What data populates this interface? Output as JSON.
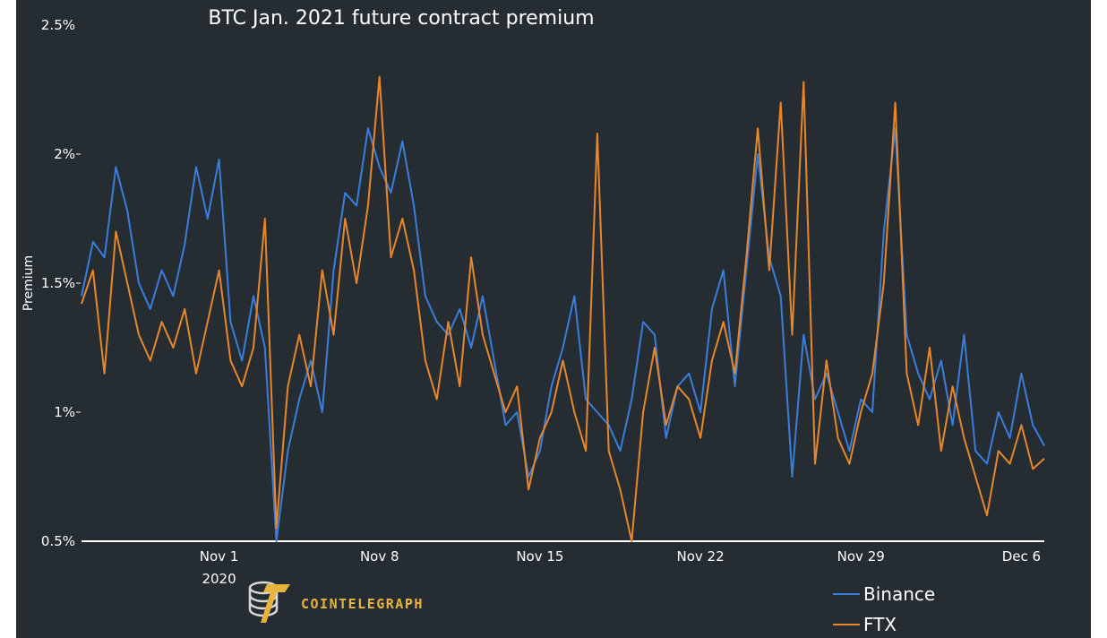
{
  "chart_data": {
    "type": "line",
    "title": "BTC Jan. 2021 future contract premium",
    "ylabel": "Premium",
    "xlabel": "",
    "xlim": [
      "2020-10-26",
      "2020-12-07"
    ],
    "ylim": [
      0.5,
      2.5
    ],
    "y_ticks": [
      0.5,
      1,
      1.5,
      2,
      2.5
    ],
    "y_tick_labels": [
      "0.5%",
      "1%",
      "1.5%",
      "2%",
      "2.5%"
    ],
    "x_ticks": [
      "2020-11-01",
      "2020-11-08",
      "2020-11-15",
      "2020-11-22",
      "2020-11-29",
      "2020-12-06"
    ],
    "x_tick_labels": [
      "Nov 1",
      "Nov 8",
      "Nov 15",
      "Nov 22",
      "Nov 29",
      "Dec 6"
    ],
    "x_tick_sublabel": "2020",
    "legend_position": "bottom-right",
    "series": [
      {
        "name": "Binance",
        "color": "#3a7ddb",
        "points": [
          [
            "2020-10-26 00:00",
            1.45
          ],
          [
            "2020-10-26 12:00",
            1.66
          ],
          [
            "2020-10-27 00:00",
            1.6
          ],
          [
            "2020-10-27 12:00",
            1.95
          ],
          [
            "2020-10-28 00:00",
            1.78
          ],
          [
            "2020-10-28 12:00",
            1.5
          ],
          [
            "2020-10-29 00:00",
            1.4
          ],
          [
            "2020-10-29 12:00",
            1.55
          ],
          [
            "2020-10-30 00:00",
            1.45
          ],
          [
            "2020-10-30 12:00",
            1.65
          ],
          [
            "2020-10-31 00:00",
            1.95
          ],
          [
            "2020-10-31 12:00",
            1.75
          ],
          [
            "2020-11-01 00:00",
            1.98
          ],
          [
            "2020-11-01 12:00",
            1.35
          ],
          [
            "2020-11-02 00:00",
            1.2
          ],
          [
            "2020-11-02 12:00",
            1.45
          ],
          [
            "2020-11-03 00:00",
            1.25
          ],
          [
            "2020-11-03 12:00",
            0.5
          ],
          [
            "2020-11-04 00:00",
            0.85
          ],
          [
            "2020-11-04 12:00",
            1.05
          ],
          [
            "2020-11-05 00:00",
            1.2
          ],
          [
            "2020-11-05 12:00",
            1.0
          ],
          [
            "2020-11-06 00:00",
            1.55
          ],
          [
            "2020-11-06 12:00",
            1.85
          ],
          [
            "2020-11-07 00:00",
            1.8
          ],
          [
            "2020-11-07 12:00",
            2.1
          ],
          [
            "2020-11-08 00:00",
            1.95
          ],
          [
            "2020-11-08 12:00",
            1.85
          ],
          [
            "2020-11-09 00:00",
            2.05
          ],
          [
            "2020-11-09 12:00",
            1.8
          ],
          [
            "2020-11-10 00:00",
            1.45
          ],
          [
            "2020-11-10 12:00",
            1.35
          ],
          [
            "2020-11-11 00:00",
            1.3
          ],
          [
            "2020-11-11 12:00",
            1.4
          ],
          [
            "2020-11-12 00:00",
            1.25
          ],
          [
            "2020-11-12 12:00",
            1.45
          ],
          [
            "2020-11-13 00:00",
            1.2
          ],
          [
            "2020-11-13 12:00",
            0.95
          ],
          [
            "2020-11-14 00:00",
            1.0
          ],
          [
            "2020-11-14 12:00",
            0.75
          ],
          [
            "2020-11-15 00:00",
            0.85
          ],
          [
            "2020-11-15 12:00",
            1.1
          ],
          [
            "2020-11-16 00:00",
            1.25
          ],
          [
            "2020-11-16 12:00",
            1.45
          ],
          [
            "2020-11-17 00:00",
            1.05
          ],
          [
            "2020-11-17 12:00",
            1.0
          ],
          [
            "2020-11-18 00:00",
            0.95
          ],
          [
            "2020-11-18 12:00",
            0.85
          ],
          [
            "2020-11-19 00:00",
            1.05
          ],
          [
            "2020-11-19 12:00",
            1.35
          ],
          [
            "2020-11-20 00:00",
            1.3
          ],
          [
            "2020-11-20 12:00",
            0.9
          ],
          [
            "2020-11-21 00:00",
            1.1
          ],
          [
            "2020-11-21 12:00",
            1.15
          ],
          [
            "2020-11-22 00:00",
            1.0
          ],
          [
            "2020-11-22 12:00",
            1.4
          ],
          [
            "2020-11-23 00:00",
            1.55
          ],
          [
            "2020-11-23 12:00",
            1.1
          ],
          [
            "2020-11-24 00:00",
            1.55
          ],
          [
            "2020-11-24 12:00",
            2.0
          ],
          [
            "2020-11-25 00:00",
            1.6
          ],
          [
            "2020-11-25 12:00",
            1.45
          ],
          [
            "2020-11-26 00:00",
            0.75
          ],
          [
            "2020-11-26 12:00",
            1.3
          ],
          [
            "2020-11-27 00:00",
            1.05
          ],
          [
            "2020-11-27 12:00",
            1.15
          ],
          [
            "2020-11-28 00:00",
            1.0
          ],
          [
            "2020-11-28 12:00",
            0.85
          ],
          [
            "2020-11-29 00:00",
            1.05
          ],
          [
            "2020-11-29 12:00",
            1.0
          ],
          [
            "2020-11-30 00:00",
            1.7
          ],
          [
            "2020-11-30 12:00",
            2.1
          ],
          [
            "2020-12-01 00:00",
            1.3
          ],
          [
            "2020-12-01 12:00",
            1.15
          ],
          [
            "2020-12-02 00:00",
            1.05
          ],
          [
            "2020-12-02 12:00",
            1.2
          ],
          [
            "2020-12-03 00:00",
            0.95
          ],
          [
            "2020-12-03 12:00",
            1.3
          ],
          [
            "2020-12-04 00:00",
            0.85
          ],
          [
            "2020-12-04 12:00",
            0.8
          ],
          [
            "2020-12-05 00:00",
            1.0
          ],
          [
            "2020-12-05 12:00",
            0.9
          ],
          [
            "2020-12-06 00:00",
            1.15
          ],
          [
            "2020-12-06 12:00",
            0.95
          ],
          [
            "2020-12-07 00:00",
            0.87
          ]
        ]
      },
      {
        "name": "FTX",
        "color": "#e8872a",
        "points": [
          [
            "2020-10-26 00:00",
            1.42
          ],
          [
            "2020-10-26 12:00",
            1.55
          ],
          [
            "2020-10-27 00:00",
            1.15
          ],
          [
            "2020-10-27 12:00",
            1.7
          ],
          [
            "2020-10-28 00:00",
            1.5
          ],
          [
            "2020-10-28 12:00",
            1.3
          ],
          [
            "2020-10-29 00:00",
            1.2
          ],
          [
            "2020-10-29 12:00",
            1.35
          ],
          [
            "2020-10-30 00:00",
            1.25
          ],
          [
            "2020-10-30 12:00",
            1.4
          ],
          [
            "2020-10-31 00:00",
            1.15
          ],
          [
            "2020-10-31 12:00",
            1.35
          ],
          [
            "2020-11-01 00:00",
            1.55
          ],
          [
            "2020-11-01 12:00",
            1.2
          ],
          [
            "2020-11-02 00:00",
            1.1
          ],
          [
            "2020-11-02 12:00",
            1.25
          ],
          [
            "2020-11-03 00:00",
            1.75
          ],
          [
            "2020-11-03 12:00",
            0.55
          ],
          [
            "2020-11-04 00:00",
            1.1
          ],
          [
            "2020-11-04 12:00",
            1.3
          ],
          [
            "2020-11-05 00:00",
            1.1
          ],
          [
            "2020-11-05 12:00",
            1.55
          ],
          [
            "2020-11-06 00:00",
            1.3
          ],
          [
            "2020-11-06 12:00",
            1.75
          ],
          [
            "2020-11-07 00:00",
            1.5
          ],
          [
            "2020-11-07 12:00",
            1.8
          ],
          [
            "2020-11-08 00:00",
            2.3
          ],
          [
            "2020-11-08 12:00",
            1.6
          ],
          [
            "2020-11-09 00:00",
            1.75
          ],
          [
            "2020-11-09 12:00",
            1.55
          ],
          [
            "2020-11-10 00:00",
            1.2
          ],
          [
            "2020-11-10 12:00",
            1.05
          ],
          [
            "2020-11-11 00:00",
            1.35
          ],
          [
            "2020-11-11 12:00",
            1.1
          ],
          [
            "2020-11-12 00:00",
            1.6
          ],
          [
            "2020-11-12 12:00",
            1.3
          ],
          [
            "2020-11-13 00:00",
            1.15
          ],
          [
            "2020-11-13 12:00",
            1.0
          ],
          [
            "2020-11-14 00:00",
            1.1
          ],
          [
            "2020-11-14 12:00",
            0.7
          ],
          [
            "2020-11-15 00:00",
            0.9
          ],
          [
            "2020-11-15 12:00",
            1.0
          ],
          [
            "2020-11-16 00:00",
            1.2
          ],
          [
            "2020-11-16 12:00",
            1.0
          ],
          [
            "2020-11-17 00:00",
            0.85
          ],
          [
            "2020-11-17 12:00",
            2.08
          ],
          [
            "2020-11-18 00:00",
            0.85
          ],
          [
            "2020-11-18 12:00",
            0.7
          ],
          [
            "2020-11-19 00:00",
            0.5
          ],
          [
            "2020-11-19 12:00",
            1.0
          ],
          [
            "2020-11-20 00:00",
            1.25
          ],
          [
            "2020-11-20 12:00",
            0.95
          ],
          [
            "2020-11-21 00:00",
            1.1
          ],
          [
            "2020-11-21 12:00",
            1.05
          ],
          [
            "2020-11-22 00:00",
            0.9
          ],
          [
            "2020-11-22 12:00",
            1.2
          ],
          [
            "2020-11-23 00:00",
            1.35
          ],
          [
            "2020-11-23 12:00",
            1.15
          ],
          [
            "2020-11-24 00:00",
            1.6
          ],
          [
            "2020-11-24 12:00",
            2.1
          ],
          [
            "2020-11-25 00:00",
            1.55
          ],
          [
            "2020-11-25 12:00",
            2.2
          ],
          [
            "2020-11-26 00:00",
            1.3
          ],
          [
            "2020-11-26 12:00",
            2.28
          ],
          [
            "2020-11-27 00:00",
            0.8
          ],
          [
            "2020-11-27 12:00",
            1.2
          ],
          [
            "2020-11-28 00:00",
            0.9
          ],
          [
            "2020-11-28 12:00",
            0.8
          ],
          [
            "2020-11-29 00:00",
            1.0
          ],
          [
            "2020-11-29 12:00",
            1.15
          ],
          [
            "2020-11-30 00:00",
            1.5
          ],
          [
            "2020-11-30 12:00",
            2.2
          ],
          [
            "2020-12-01 00:00",
            1.15
          ],
          [
            "2020-12-01 12:00",
            0.95
          ],
          [
            "2020-12-02 00:00",
            1.25
          ],
          [
            "2020-12-02 12:00",
            0.85
          ],
          [
            "2020-12-03 00:00",
            1.1
          ],
          [
            "2020-12-03 12:00",
            0.9
          ],
          [
            "2020-12-04 00:00",
            0.75
          ],
          [
            "2020-12-04 12:00",
            0.6
          ],
          [
            "2020-12-05 00:00",
            0.85
          ],
          [
            "2020-12-05 12:00",
            0.8
          ],
          [
            "2020-12-06 00:00",
            0.95
          ],
          [
            "2020-12-06 12:00",
            0.78
          ],
          [
            "2020-12-07 00:00",
            0.82
          ]
        ]
      }
    ]
  },
  "branding": {
    "name": "COINTELEGRAPH",
    "logo_icon": "coin-stack-logo-icon",
    "accent": "#e8b33c"
  },
  "theme": {
    "background": "#252d33",
    "text": "#ffffff"
  }
}
